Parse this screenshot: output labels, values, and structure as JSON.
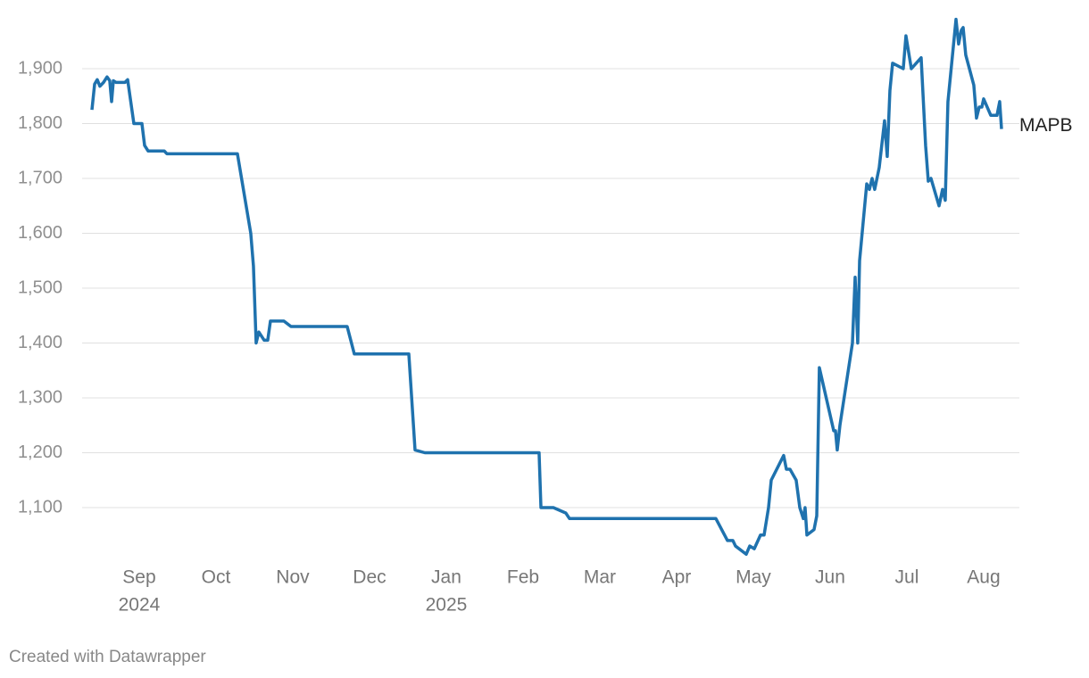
{
  "chart_data": {
    "type": "line",
    "credit": "Created with Datawrapper",
    "x": [
      -0.616,
      -0.581,
      -0.547,
      -0.512,
      -0.465,
      -0.419,
      -0.384,
      -0.36,
      -0.337,
      -0.302,
      -0.186,
      -0.151,
      -0.07,
      0.035,
      0.07,
      0.116,
      0.326,
      0.36,
      1.279,
      1.453,
      1.488,
      1.523,
      1.558,
      1.628,
      1.674,
      1.709,
      1.884,
      1.977,
      2.709,
      2.802,
      3.512,
      3.593,
      3.721,
      5.209,
      5.233,
      5.395,
      5.558,
      5.605,
      7.512,
      7.663,
      7.733,
      7.767,
      7.907,
      7.953,
      8.012,
      8.093,
      8.14,
      8.198,
      8.233,
      8.395,
      8.43,
      8.477,
      8.558,
      8.605,
      8.651,
      8.674,
      8.698,
      8.791,
      8.826,
      8.86,
      9.047,
      9.07,
      9.093,
      9.128,
      9.291,
      9.326,
      9.36,
      9.384,
      9.477,
      9.512,
      9.547,
      9.581,
      9.64,
      9.709,
      9.744,
      9.779,
      9.814,
      9.953,
      9.988,
      10.058,
      10.186,
      10.244,
      10.279,
      10.314,
      10.419,
      10.465,
      10.5,
      10.535,
      10.64,
      10.674,
      10.709,
      10.733,
      10.767,
      10.872,
      10.907,
      10.942,
      10.977,
      11.0,
      11.093,
      11.174,
      11.209,
      11.233
    ],
    "series": [
      {
        "name": "MAPB",
        "color": "#1f72ae",
        "values": [
          1825,
          1872,
          1880,
          1868,
          1875,
          1885,
          1878,
          1840,
          1878,
          1875,
          1875,
          1880,
          1800,
          1800,
          1760,
          1750,
          1750,
          1745,
          1745,
          1600,
          1540,
          1400,
          1420,
          1405,
          1405,
          1440,
          1440,
          1430,
          1430,
          1380,
          1380,
          1205,
          1200,
          1200,
          1100,
          1100,
          1090,
          1080,
          1080,
          1040,
          1040,
          1030,
          1015,
          1030,
          1025,
          1050,
          1050,
          1100,
          1150,
          1195,
          1170,
          1170,
          1150,
          1100,
          1080,
          1100,
          1050,
          1060,
          1085,
          1355,
          1240,
          1240,
          1205,
          1250,
          1400,
          1520,
          1400,
          1550,
          1690,
          1680,
          1700,
          1680,
          1720,
          1805,
          1740,
          1860,
          1910,
          1900,
          1960,
          1900,
          1920,
          1760,
          1695,
          1700,
          1650,
          1680,
          1660,
          1840,
          1990,
          1945,
          1970,
          1975,
          1925,
          1870,
          1810,
          1830,
          1830,
          1845,
          1815,
          1815,
          1840,
          1790
        ]
      }
    ],
    "xlim": [
      -0.616,
      11.233
    ],
    "xticks": [
      {
        "value": 0,
        "label": "Sep",
        "year": "2024"
      },
      {
        "value": 1,
        "label": "Oct"
      },
      {
        "value": 2,
        "label": "Nov"
      },
      {
        "value": 3,
        "label": "Dec"
      },
      {
        "value": 4,
        "label": "Jan",
        "year": "2025"
      },
      {
        "value": 5,
        "label": "Feb"
      },
      {
        "value": 6,
        "label": "Mar"
      },
      {
        "value": 7,
        "label": "Apr"
      },
      {
        "value": 8,
        "label": "May"
      },
      {
        "value": 9,
        "label": "Jun"
      },
      {
        "value": 10,
        "label": "Jul"
      },
      {
        "value": 11,
        "label": "Aug"
      }
    ],
    "ylim": [
      1000,
      2000
    ],
    "yticks": [
      {
        "value": 1100,
        "label": "1,100"
      },
      {
        "value": 1200,
        "label": "1,200"
      },
      {
        "value": 1300,
        "label": "1,300"
      },
      {
        "value": 1400,
        "label": "1,400"
      },
      {
        "value": 1500,
        "label": "1,500"
      },
      {
        "value": 1600,
        "label": "1,600"
      },
      {
        "value": 1700,
        "label": "1,700"
      },
      {
        "value": 1800,
        "label": "1,800"
      },
      {
        "value": 1900,
        "label": "1,900"
      }
    ],
    "grid": true
  }
}
